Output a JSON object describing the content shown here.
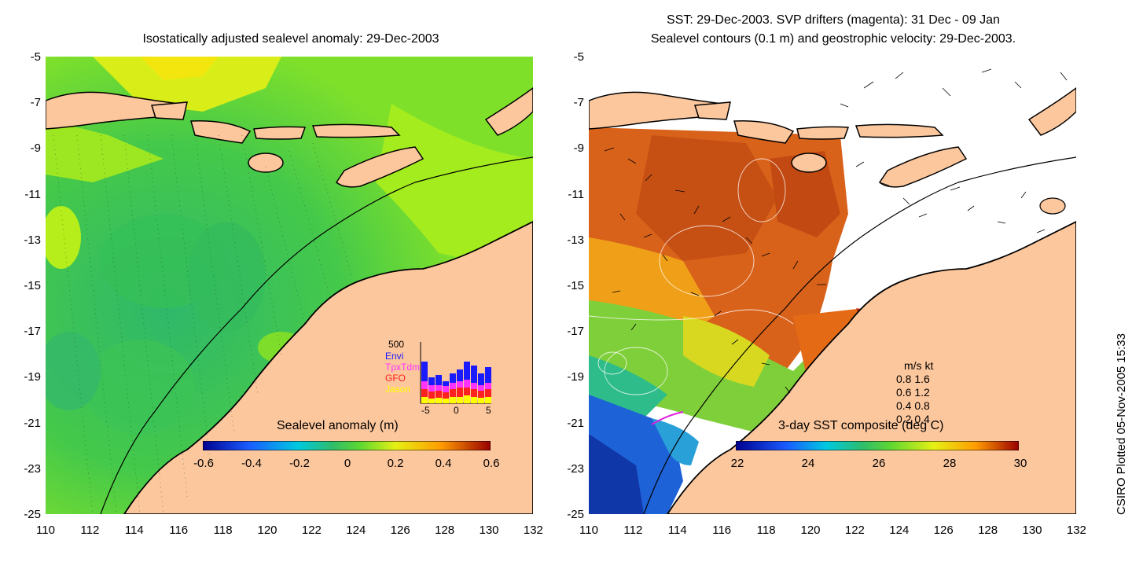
{
  "left_panel": {
    "title": "Isostatically adjusted sealevel anomaly: 29-Dec-2003",
    "colorbar_label": "Sealevel anomaly (m)",
    "colorbar_ticks": [
      "-0.6",
      "-0.4",
      "-0.2",
      "0",
      "0.2",
      "0.4",
      "0.6"
    ],
    "histogram": {
      "max_label": "500",
      "legend": [
        {
          "name": "Envi",
          "color": "#1a1aff"
        },
        {
          "name": "TpxTdm",
          "color": "#ff33ff"
        },
        {
          "name": "GFO",
          "color": "#ff2020"
        },
        {
          "name": "Jason",
          "color": "#ffff00"
        }
      ],
      "x_ticks": [
        "-5",
        "0",
        "5"
      ]
    }
  },
  "right_panel": {
    "title_line1": "SST: 29-Dec-2003. SVP drifters (magenta): 31 Dec - 09 Jan",
    "title_line2": "Sealevel contours (0.1 m) and geostrophic velocity: 29-Dec-2003.",
    "colorbar_label": "3-day SST composite (deg C)",
    "colorbar_ticks": [
      "22",
      "24",
      "26",
      "28",
      "30"
    ],
    "velocity_legend": {
      "header": "m/s  kt",
      "rows": [
        "0.8  1.6",
        "0.6  1.2",
        "0.4  0.8",
        "0.2  0.4"
      ]
    }
  },
  "axes": {
    "y_ticks": [
      "-5",
      "-7",
      "-9",
      "-11",
      "-13",
      "-15",
      "-17",
      "-19",
      "-21",
      "-23",
      "-25"
    ],
    "x_ticks": [
      "110",
      "112",
      "114",
      "116",
      "118",
      "120",
      "122",
      "124",
      "126",
      "128",
      "130",
      "132"
    ]
  },
  "stamp": "CSIRO Plotted 05-Nov-2005 15:33",
  "colors": {
    "land": "#fdc79d",
    "sea_left": "#4fd23a",
    "sea_left_dark": "#2ebd4e",
    "sea_left_yellow": "#b8f21a",
    "sst_warm": "#e06a1a",
    "sst_mid": "#7fcc3a",
    "sst_cool": "#1b4fd8"
  }
}
